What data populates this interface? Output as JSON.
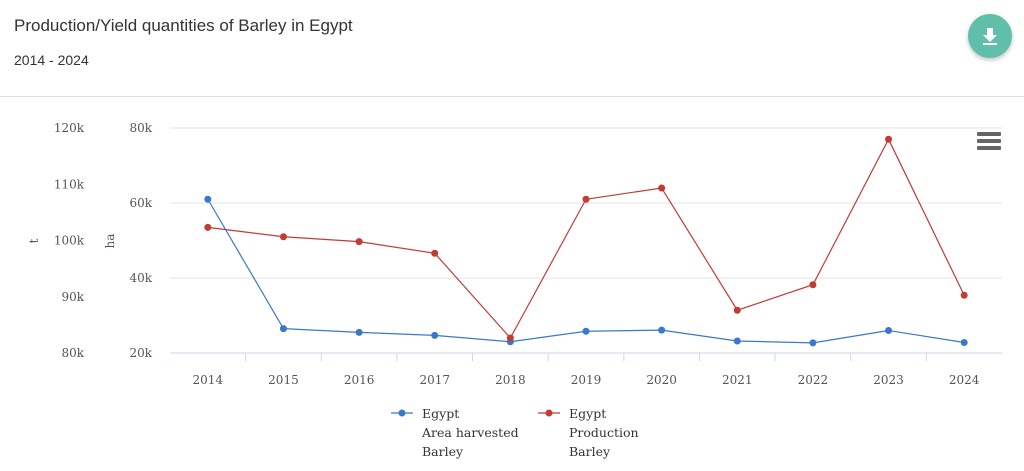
{
  "header": {
    "title": "Production/Yield quantities of Barley in Egypt",
    "subtitle": "2014 - 2024"
  },
  "icons": {
    "download": "download-icon",
    "menu": "hamburger-menu-icon"
  },
  "colors": {
    "download_button": "#5fbfaa",
    "area_series": "#3a78c9",
    "production_series": "#c23b35"
  },
  "chart_data": {
    "type": "line",
    "title": "Production/Yield quantities of Barley in Egypt",
    "subtitle": "2014 - 2024",
    "x": [
      "2014",
      "2015",
      "2016",
      "2017",
      "2018",
      "2019",
      "2020",
      "2021",
      "2022",
      "2023",
      "2024"
    ],
    "axes": {
      "left_outer": {
        "label": "t",
        "ticks": [
          "80k",
          "90k",
          "100k",
          "110k",
          "120k"
        ],
        "range": [
          80000,
          120000
        ]
      },
      "left_inner": {
        "label": "ha",
        "ticks": [
          "20k",
          "40k",
          "60k",
          "80k"
        ],
        "range": [
          20000,
          80000
        ]
      }
    },
    "series": [
      {
        "name_lines": [
          "Egypt",
          "Area harvested",
          "Barley"
        ],
        "axis": "left_inner",
        "color": "#3a78c9",
        "values": [
          61000,
          26500,
          25500,
          24700,
          23000,
          25800,
          26100,
          23200,
          22700,
          26000,
          22800
        ]
      },
      {
        "name_lines": [
          "Egypt",
          "Production",
          "Barley"
        ],
        "axis": "left_inner",
        "color": "#c23b35",
        "values": [
          53500,
          51000,
          49700,
          46600,
          24000,
          61000,
          64000,
          31400,
          38200,
          77000,
          35400
        ]
      }
    ],
    "grid": true,
    "legend_position": "bottom"
  }
}
